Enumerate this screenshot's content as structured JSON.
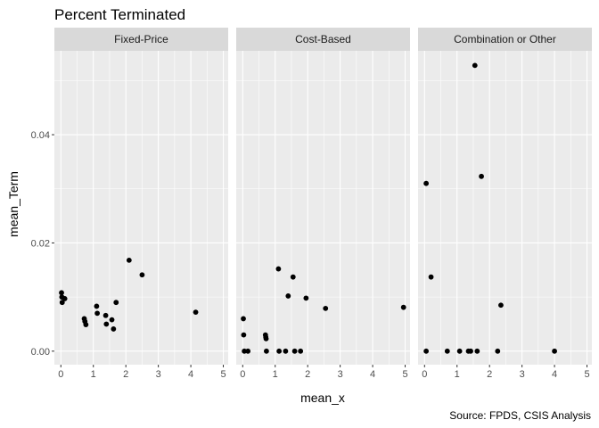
{
  "chart_data": {
    "type": "scatter",
    "title": "Percent Terminated",
    "xlabel": "mean_x",
    "ylabel": "mean_Term",
    "caption": "Source: FPDS, CSIS Analysis",
    "xlim": [
      -0.2,
      5.15
    ],
    "ylim": [
      -0.0025,
      0.0555
    ],
    "x_ticks": [
      0,
      1,
      2,
      3,
      4,
      5
    ],
    "x_tick_labels": [
      "0",
      "1",
      "2",
      "3",
      "4",
      "5"
    ],
    "y_ticks": [
      0.0,
      0.02,
      0.04
    ],
    "y_tick_labels": [
      "0.00",
      "0.02",
      "0.04"
    ],
    "grid": true,
    "point_color": "#000000",
    "panel_background": "#ebebeb",
    "strip_background": "#d9d9d9",
    "facets": [
      {
        "label": "Fixed-Price",
        "points": [
          {
            "x": 0.02,
            "y": 0.0108
          },
          {
            "x": 0.03,
            "y": 0.01
          },
          {
            "x": 0.04,
            "y": 0.009
          },
          {
            "x": 0.12,
            "y": 0.0097
          },
          {
            "x": 0.72,
            "y": 0.006
          },
          {
            "x": 0.74,
            "y": 0.0055
          },
          {
            "x": 0.77,
            "y": 0.0049
          },
          {
            "x": 1.1,
            "y": 0.0083
          },
          {
            "x": 1.12,
            "y": 0.007
          },
          {
            "x": 1.38,
            "y": 0.0066
          },
          {
            "x": 1.4,
            "y": 0.005
          },
          {
            "x": 1.57,
            "y": 0.0058
          },
          {
            "x": 1.62,
            "y": 0.0041
          },
          {
            "x": 1.7,
            "y": 0.009
          },
          {
            "x": 2.1,
            "y": 0.0168
          },
          {
            "x": 2.5,
            "y": 0.0141
          },
          {
            "x": 4.15,
            "y": 0.0072
          }
        ]
      },
      {
        "label": "Cost-Based",
        "points": [
          {
            "x": 0.02,
            "y": 0.006
          },
          {
            "x": 0.03,
            "y": 0.003
          },
          {
            "x": 0.05,
            "y": 0.0
          },
          {
            "x": 0.16,
            "y": 0.0
          },
          {
            "x": 0.7,
            "y": 0.003
          },
          {
            "x": 0.71,
            "y": 0.0026
          },
          {
            "x": 0.72,
            "y": 0.0023
          },
          {
            "x": 0.73,
            "y": 0.0
          },
          {
            "x": 1.1,
            "y": 0.0152
          },
          {
            "x": 1.12,
            "y": 0.0
          },
          {
            "x": 1.32,
            "y": 0.0
          },
          {
            "x": 1.4,
            "y": 0.0102
          },
          {
            "x": 1.55,
            "y": 0.0137
          },
          {
            "x": 1.6,
            "y": 0.0
          },
          {
            "x": 1.78,
            "y": 0.0
          },
          {
            "x": 1.95,
            "y": 0.0098
          },
          {
            "x": 2.55,
            "y": 0.0079
          },
          {
            "x": 4.95,
            "y": 0.0081
          }
        ]
      },
      {
        "label": "Combination or Other",
        "points": [
          {
            "x": 0.05,
            "y": 0.031
          },
          {
            "x": 0.05,
            "y": 0.0
          },
          {
            "x": 0.2,
            "y": 0.0137
          },
          {
            "x": 0.7,
            "y": 0.0
          },
          {
            "x": 1.08,
            "y": 0.0
          },
          {
            "x": 1.35,
            "y": 0.0
          },
          {
            "x": 1.42,
            "y": 0.0
          },
          {
            "x": 1.55,
            "y": 0.0528
          },
          {
            "x": 1.62,
            "y": 0.0
          },
          {
            "x": 1.75,
            "y": 0.0323
          },
          {
            "x": 2.25,
            "y": 0.0
          },
          {
            "x": 2.35,
            "y": 0.0085
          },
          {
            "x": 4.0,
            "y": 0.0
          }
        ]
      }
    ]
  }
}
